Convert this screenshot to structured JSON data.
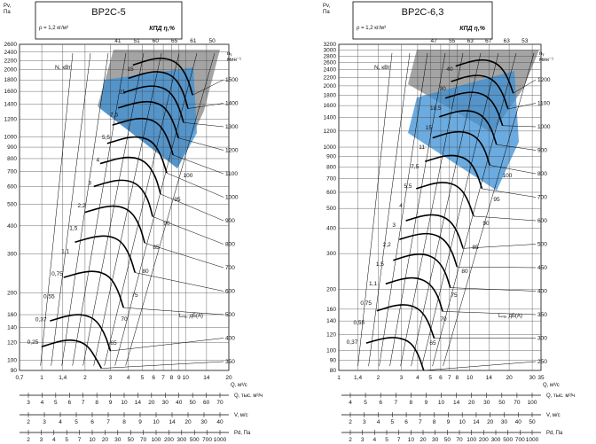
{
  "chart_data": [
    {
      "type": "line",
      "title": "ВР2С-5",
      "density_note": "ρ = 1,2 кг/м³",
      "efficiency_header": "КПД η,%",
      "efficiency_values": [
        "41",
        "51",
        "60",
        "65",
        "61",
        "50"
      ],
      "speed_label_top": "nᵧ",
      "speed_label_unit": "мин⁻¹",
      "power_label": "N, кВт",
      "noise_label": "Lₚₐ, дБ(А)",
      "y_label_top": "Pv,",
      "y_label_unit": "Па",
      "y_ticks": [
        "2600",
        "2400",
        "2200",
        "2000",
        "1800",
        "1600",
        "1400",
        "1200",
        "1000",
        "900",
        "800",
        "700",
        "600",
        "500",
        "400",
        "300",
        "200",
        "160",
        "140",
        "120",
        "100",
        "90"
      ],
      "y_ticks_values": [
        2600,
        2400,
        2200,
        2000,
        1800,
        1600,
        1400,
        1200,
        1000,
        900,
        800,
        700,
        600,
        500,
        400,
        300,
        200,
        160,
        140,
        120,
        100,
        90
      ],
      "ylim": [
        90,
        2600
      ],
      "x_ticks": [
        "0,7",
        "1",
        "1,4",
        "2",
        "3",
        "4",
        "5",
        "6",
        "7",
        "8",
        "9",
        "10",
        "14",
        "20"
      ],
      "x_ticks_values": [
        0.7,
        1,
        1.4,
        2,
        3,
        4,
        5,
        6,
        7,
        8,
        9,
        10,
        14,
        20
      ],
      "xlim": [
        0.7,
        20
      ],
      "xlabel": "Q, м³/с",
      "speed_ticks": [
        "1500",
        "1400",
        "1300",
        "1200",
        "1100",
        "1000",
        "900",
        "800",
        "700",
        "600",
        "500",
        "400",
        "350"
      ],
      "speed_values": [
        1500,
        1400,
        1300,
        1200,
        1100,
        1000,
        900,
        800,
        700,
        600,
        500,
        400,
        350
      ],
      "power_labels": [
        "15",
        "11",
        "7,5",
        "5,5",
        "4",
        "3",
        "2,2",
        "1,5",
        "1,1",
        "0,75",
        "0,55",
        "0,37",
        "0,25"
      ],
      "power_values": [
        15,
        11,
        7.5,
        5.5,
        4,
        3,
        2.2,
        1.5,
        1.1,
        0.75,
        0.55,
        0.37,
        0.25
      ],
      "noise_labels": [
        "100",
        "95",
        "90",
        "85",
        "80",
        "75",
        "70",
        "65"
      ],
      "curves_per_speed": [
        {
          "speed": 1500,
          "points": [
            [
              4.3,
              2100
            ],
            [
              6.0,
              2250
            ],
            [
              7.5,
              2250
            ],
            [
              9.0,
              2120
            ],
            [
              10.3,
              1850
            ],
            [
              11.2,
              1540
            ]
          ]
        },
        {
          "speed": 1400,
          "points": [
            [
              4.0,
              1830
            ],
            [
              5.6,
              1960
            ],
            [
              7.0,
              1960
            ],
            [
              8.4,
              1850
            ],
            [
              9.6,
              1610
            ],
            [
              10.4,
              1340
            ]
          ]
        },
        {
          "speed": 1300,
          "points": [
            [
              3.7,
              1580
            ],
            [
              5.2,
              1690
            ],
            [
              6.5,
              1690
            ],
            [
              7.8,
              1600
            ],
            [
              8.9,
              1390
            ],
            [
              9.7,
              1160
            ]
          ]
        },
        {
          "speed": 1200,
          "points": [
            [
              3.4,
              1350
            ],
            [
              4.8,
              1440
            ],
            [
              6.0,
              1440
            ],
            [
              7.2,
              1360
            ],
            [
              8.2,
              1180
            ],
            [
              8.9,
              990
            ]
          ]
        },
        {
          "speed": 1100,
          "points": [
            [
              3.1,
              1130
            ],
            [
              4.4,
              1210
            ],
            [
              5.5,
              1210
            ],
            [
              6.6,
              1140
            ],
            [
              7.5,
              995
            ],
            [
              8.2,
              830
            ]
          ]
        },
        {
          "speed": 1000,
          "points": [
            [
              2.85,
              935
            ],
            [
              4.0,
              1000
            ],
            [
              5.0,
              1000
            ],
            [
              6.0,
              945
            ],
            [
              6.8,
              820
            ],
            [
              7.4,
              690
            ]
          ]
        },
        {
          "speed": 900,
          "points": [
            [
              2.55,
              760
            ],
            [
              3.6,
              810
            ],
            [
              4.5,
              810
            ],
            [
              5.4,
              765
            ],
            [
              6.2,
              665
            ],
            [
              6.7,
              555
            ]
          ]
        },
        {
          "speed": 800,
          "points": [
            [
              2.3,
              600
            ],
            [
              3.2,
              640
            ],
            [
              4.0,
              640
            ],
            [
              4.8,
              605
            ],
            [
              5.5,
              525
            ],
            [
              5.9,
              440
            ]
          ]
        },
        {
          "speed": 700,
          "points": [
            [
              2.0,
              460
            ],
            [
              2.8,
              490
            ],
            [
              3.5,
              490
            ],
            [
              4.2,
              463
            ],
            [
              4.8,
              402
            ],
            [
              5.2,
              335
            ]
          ]
        },
        {
          "speed": 600,
          "points": [
            [
              1.7,
              338
            ],
            [
              2.4,
              360
            ],
            [
              3.0,
              360
            ],
            [
              3.6,
              340
            ],
            [
              4.1,
              295
            ],
            [
              4.45,
              247
            ]
          ]
        },
        {
          "speed": 500,
          "points": [
            [
              1.42,
              235
            ],
            [
              2.0,
              250
            ],
            [
              2.5,
              250
            ],
            [
              3.0,
              236
            ],
            [
              3.4,
              205
            ],
            [
              3.7,
              172
            ]
          ]
        },
        {
          "speed": 400,
          "points": [
            [
              1.14,
              150
            ],
            [
              1.6,
              160
            ],
            [
              2.0,
              160
            ],
            [
              2.4,
              151
            ],
            [
              2.75,
              131
            ],
            [
              3.0,
              110
            ]
          ]
        },
        {
          "speed": 350,
          "points": [
            [
              1.0,
              115
            ],
            [
              1.4,
              123
            ],
            [
              1.75,
              123
            ],
            [
              2.1,
              116
            ],
            [
              2.4,
              101
            ],
            [
              2.6,
              92
            ]
          ]
        }
      ]
    },
    {
      "type": "line",
      "title": "ВР2С-6,3",
      "density_note": "ρ = 1,2 кг/м³",
      "efficiency_header": "КПД η,%",
      "efficiency_values": [
        "47",
        "55",
        "63",
        "67",
        "63",
        "53"
      ],
      "speed_label_top": "nᵧ",
      "speed_label_unit": "мин⁻¹",
      "power_label": "N, кВт",
      "noise_label": "Lₚₐ, дБ(А)",
      "y_label_top": "Pv,",
      "y_label_unit": "Па",
      "y_ticks": [
        "3200",
        "3000",
        "2800",
        "2600",
        "2400",
        "2200",
        "2000",
        "1800",
        "1600",
        "1400",
        "1200",
        "1000",
        "900",
        "800",
        "700",
        "600",
        "500",
        "400",
        "300",
        "200",
        "160",
        "140",
        "120",
        "100",
        "90",
        "80"
      ],
      "y_ticks_values": [
        3200,
        3000,
        2800,
        2600,
        2400,
        2200,
        2000,
        1800,
        1600,
        1400,
        1200,
        1000,
        900,
        800,
        700,
        600,
        500,
        400,
        300,
        200,
        160,
        140,
        120,
        100,
        90,
        80
      ],
      "ylim": [
        80,
        3200
      ],
      "x_ticks": [
        "1",
        "1,4",
        "2",
        "3",
        "4",
        "5",
        "6",
        "7",
        "8",
        "10",
        "14",
        "20",
        "30",
        "35"
      ],
      "x_ticks_values": [
        1,
        1.4,
        2,
        3,
        4,
        5,
        6,
        7,
        8,
        10,
        14,
        20,
        30,
        35
      ],
      "xlim": [
        1,
        35
      ],
      "xlabel": "Q, м³/с",
      "speed_ticks": [
        "1200",
        "1100",
        "1000",
        "900",
        "800",
        "700",
        "600",
        "500",
        "450",
        "400",
        "350",
        "300",
        "250"
      ],
      "speed_values": [
        1200,
        1100,
        1000,
        900,
        800,
        700,
        600,
        500,
        450,
        400,
        350,
        300,
        250
      ],
      "power_labels": [
        "40",
        "30",
        "18,5",
        "15",
        "11",
        "7,5",
        "5,5",
        "4",
        "3",
        "2,2",
        "1,5",
        "1,1",
        "0,75",
        "0,55",
        "0,37"
      ],
      "power_values": [
        40,
        30,
        18.5,
        15,
        11,
        7.5,
        5.5,
        4,
        3,
        2.2,
        1.5,
        1.1,
        0.75,
        0.55,
        0.37
      ],
      "noise_labels": [
        "100",
        "95",
        "90",
        "85",
        "80",
        "75",
        "70",
        "65"
      ],
      "curves_per_speed": [
        {
          "speed": 1200,
          "points": [
            [
              7.8,
              2500
            ],
            [
              11.0,
              2680
            ],
            [
              14.0,
              2680
            ],
            [
              17.0,
              2520
            ],
            [
              19.5,
              2200
            ],
            [
              21.5,
              1840
            ]
          ]
        },
        {
          "speed": 1100,
          "points": [
            [
              7.2,
              2100
            ],
            [
              10.0,
              2250
            ],
            [
              12.8,
              2250
            ],
            [
              15.5,
              2120
            ],
            [
              17.8,
              1850
            ],
            [
              19.6,
              1540
            ]
          ]
        },
        {
          "speed": 1000,
          "points": [
            [
              6.5,
              1740
            ],
            [
              9.1,
              1860
            ],
            [
              11.6,
              1860
            ],
            [
              14.1,
              1750
            ],
            [
              16.2,
              1530
            ],
            [
              17.8,
              1275
            ]
          ]
        },
        {
          "speed": 900,
          "points": [
            [
              5.85,
              1410
            ],
            [
              8.2,
              1510
            ],
            [
              10.5,
              1510
            ],
            [
              12.7,
              1420
            ],
            [
              14.6,
              1240
            ],
            [
              16.0,
              1030
            ]
          ]
        },
        {
          "speed": 800,
          "points": [
            [
              5.2,
              1110
            ],
            [
              7.3,
              1190
            ],
            [
              9.3,
              1190
            ],
            [
              11.3,
              1120
            ],
            [
              13.0,
              980
            ],
            [
              14.2,
              815
            ]
          ]
        },
        {
          "speed": 700,
          "points": [
            [
              4.55,
              850
            ],
            [
              6.4,
              910
            ],
            [
              8.1,
              910
            ],
            [
              9.9,
              860
            ],
            [
              11.3,
              750
            ],
            [
              12.4,
              625
            ]
          ]
        },
        {
          "speed": 600,
          "points": [
            [
              3.9,
              625
            ],
            [
              5.5,
              670
            ],
            [
              7.0,
              670
            ],
            [
              8.5,
              630
            ],
            [
              9.7,
              550
            ],
            [
              10.7,
              458
            ]
          ]
        },
        {
          "speed": 500,
          "points": [
            [
              3.25,
              435
            ],
            [
              4.55,
              465
            ],
            [
              5.8,
              465
            ],
            [
              7.05,
              437
            ],
            [
              8.1,
              382
            ],
            [
              8.9,
              318
            ]
          ]
        },
        {
          "speed": 450,
          "points": [
            [
              2.9,
              352
            ],
            [
              4.1,
              376
            ],
            [
              5.2,
              376
            ],
            [
              6.35,
              354
            ],
            [
              7.3,
              310
            ],
            [
              8.0,
              258
            ]
          ]
        },
        {
          "speed": 400,
          "points": [
            [
              2.6,
              278
            ],
            [
              3.65,
              298
            ],
            [
              4.65,
              298
            ],
            [
              5.65,
              280
            ],
            [
              6.5,
              245
            ],
            [
              7.1,
              204
            ]
          ]
        },
        {
          "speed": 350,
          "points": [
            [
              2.28,
              213
            ],
            [
              3.2,
              228
            ],
            [
              4.05,
              228
            ],
            [
              4.95,
              214
            ],
            [
              5.7,
              187
            ],
            [
              6.2,
              156
            ]
          ]
        },
        {
          "speed": 300,
          "points": [
            [
              1.95,
              157
            ],
            [
              2.73,
              168
            ],
            [
              3.5,
              168
            ],
            [
              4.25,
              158
            ],
            [
              4.85,
              138
            ],
            [
              5.35,
              115
            ]
          ]
        },
        {
          "speed": 250,
          "points": [
            [
              1.62,
              109
            ],
            [
              2.28,
              116
            ],
            [
              2.9,
              116
            ],
            [
              3.55,
              110
            ],
            [
              4.05,
              96
            ],
            [
              4.45,
              80
            ]
          ]
        }
      ]
    }
  ],
  "bottom_scales": [
    {
      "label": "Q, тыс. м³/ч",
      "left_ticks": [
        "3",
        "4",
        "5",
        "6",
        "7",
        "8",
        "9",
        "10",
        "14",
        "20",
        "30",
        "40",
        "50",
        "60",
        "70"
      ],
      "right_ticks": [
        "4",
        "5",
        "6",
        "7",
        "8",
        "9",
        "10",
        "14",
        "20",
        "30",
        "50",
        "70",
        "100"
      ]
    },
    {
      "label": "V, м/с",
      "left_ticks": [
        "2",
        "3",
        "4",
        "5",
        "6",
        "7",
        "8",
        "9",
        "10",
        "14",
        "20",
        "30",
        "40"
      ],
      "right_ticks": [
        "2",
        "3",
        "4",
        "5",
        "6",
        "7",
        "8",
        "9",
        "10",
        "14",
        "20",
        "30",
        "40",
        "50"
      ]
    },
    {
      "label": "Pd, Па",
      "left_ticks": [
        "2",
        "3",
        "4",
        "5",
        "7",
        "10",
        "20",
        "30",
        "50",
        "70",
        "100",
        "200",
        "300",
        "500",
        "700",
        "1000"
      ],
      "right_ticks": [
        "2",
        "3",
        "4",
        "5",
        "7",
        "10",
        "20",
        "30",
        "50",
        "70",
        "100",
        "200",
        "300",
        "500",
        "700",
        "1000"
      ]
    }
  ]
}
